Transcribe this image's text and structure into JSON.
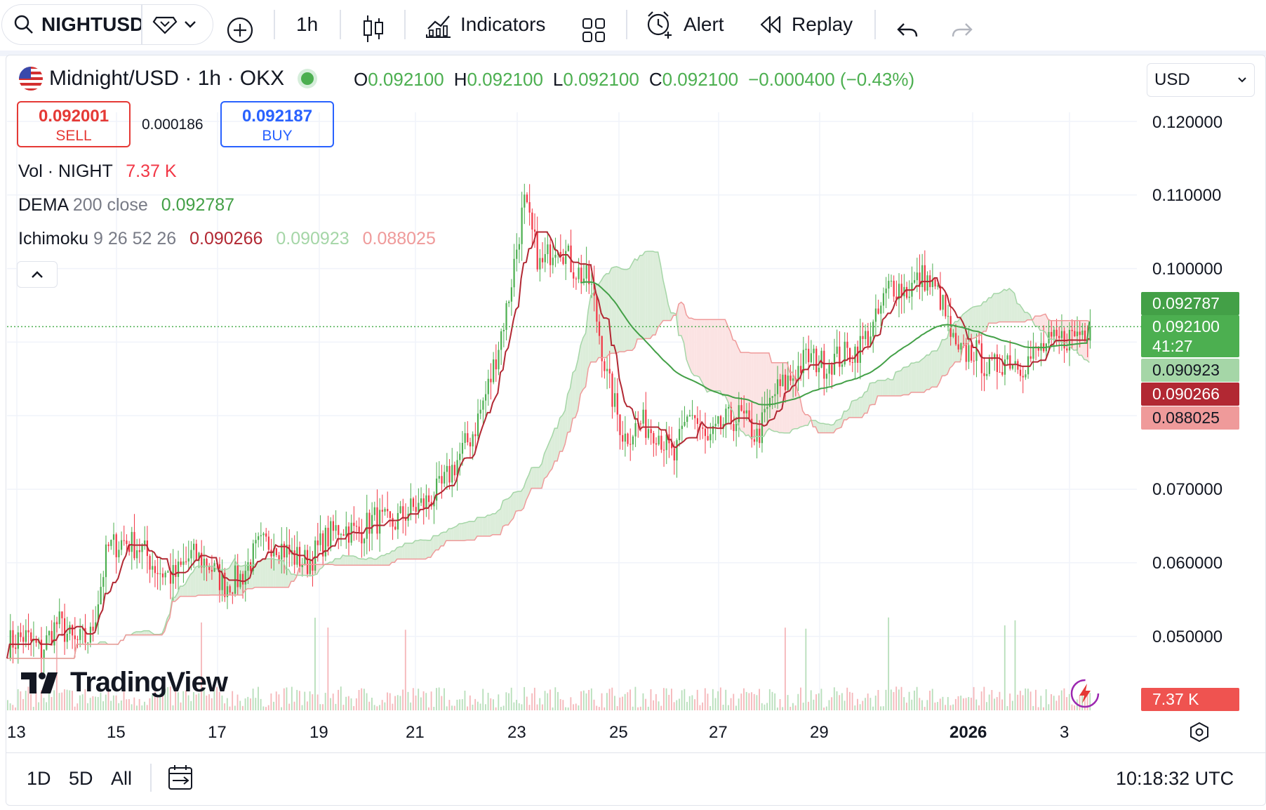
{
  "toolbar": {
    "symbol": "NIGHTUSD",
    "interval": "1h",
    "indicators_label": "Indicators",
    "alert_label": "Alert",
    "replay_label": "Replay"
  },
  "legend": {
    "title": "Midnight/USD · 1h · OKX",
    "o_key": "O",
    "o_val": "0.092100",
    "h_key": "H",
    "h_val": "0.092100",
    "l_key": "L",
    "l_val": "0.092100",
    "c_key": "C",
    "c_val": "0.092100",
    "change": "−0.000400 (−0.43%)"
  },
  "trade": {
    "sell_price": "0.092001",
    "sell_label": "SELL",
    "spread": "0.000186",
    "buy_price": "0.092187",
    "buy_label": "BUY"
  },
  "indicators": {
    "vol_name": "Vol · NIGHT",
    "vol_value": "7.37 K",
    "dema_name": "DEMA",
    "dema_params": "200 close",
    "dema_value": "0.092787",
    "ichi_name": "Ichimoku",
    "ichi_params": "9 26 52 26",
    "ichi_v1": "0.090266",
    "ichi_v2": "0.090923",
    "ichi_v3": "0.088025"
  },
  "currency": "USD",
  "price_axis": [
    "0.120000",
    "0.110000",
    "0.100000",
    "0.070000",
    "0.060000",
    "0.050000"
  ],
  "price_tags": {
    "dema": "0.092787",
    "last": "0.092100",
    "countdown": "41:27",
    "span_a": "0.090923",
    "conv": "0.090266",
    "span_b": "0.088025",
    "vol": "7.37 K"
  },
  "time_axis": [
    "13",
    "15",
    "17",
    "19",
    "21",
    "23",
    "25",
    "27",
    "29",
    "2026",
    "3"
  ],
  "bottom": {
    "r1": "1D",
    "r2": "5D",
    "r3": "All",
    "clock": "10:18:32 UTC"
  },
  "brand": "TradingView",
  "colors": {
    "up": "#4caf50",
    "down": "#f23645",
    "conv": "#b22833",
    "dema": "#43a047",
    "cloud_up": "#dcedda",
    "cloud_down": "#fbe3e3",
    "buy": "#2962ff",
    "sell": "#e53935"
  },
  "chart_data": {
    "type": "candlestick",
    "ylim": [
      0.04,
      0.12
    ],
    "dema_last": 0.092787,
    "close_path": [
      0.049,
      0.05,
      0.048,
      0.052,
      0.049,
      0.05,
      0.062,
      0.063,
      0.062,
      0.059,
      0.058,
      0.061,
      0.06,
      0.057,
      0.058,
      0.062,
      0.063,
      0.061,
      0.06,
      0.063,
      0.065,
      0.064,
      0.066,
      0.065,
      0.067,
      0.068,
      0.07,
      0.074,
      0.078,
      0.085,
      0.095,
      0.109,
      0.1,
      0.104,
      0.1,
      0.098,
      0.085,
      0.077,
      0.079,
      0.078,
      0.074,
      0.081,
      0.076,
      0.079,
      0.08,
      0.077,
      0.083,
      0.085,
      0.088,
      0.087,
      0.088,
      0.089,
      0.092,
      0.098,
      0.097,
      0.099,
      0.096,
      0.088,
      0.089,
      0.086,
      0.088,
      0.087,
      0.089,
      0.09,
      0.091,
      0.0921
    ]
  }
}
